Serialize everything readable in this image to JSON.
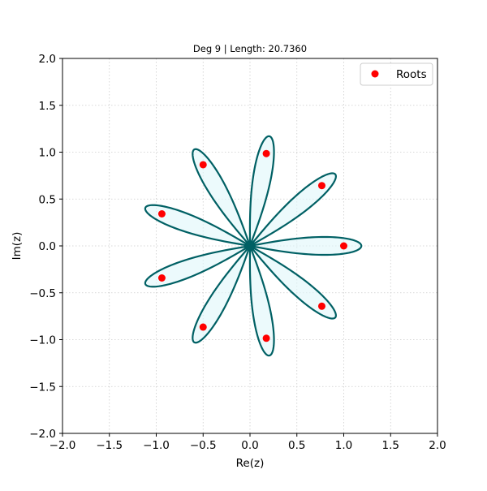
{
  "chart_data": {
    "type": "line",
    "title": "Deg 9 | Length: 20.7360",
    "xlabel": "Re(z)",
    "ylabel": "Im(z)",
    "xlim": [
      -2.0,
      2.0
    ],
    "ylim": [
      -2.0,
      2.0
    ],
    "xticks": [
      "−2.0",
      "−1.5",
      "−1.0",
      "−0.5",
      "0.0",
      "0.5",
      "1.0",
      "1.5",
      "2.0"
    ],
    "yticks": [
      "−2.0",
      "−1.5",
      "−1.0",
      "−0.5",
      "0.0",
      "0.5",
      "1.0",
      "1.5",
      "2.0"
    ],
    "grid": true,
    "legend": {
      "position": "top-right",
      "entries": [
        "Roots"
      ]
    },
    "curve": {
      "shape": "lemniscate-petals",
      "degree": 9,
      "petal_count": 9,
      "petal_tip_radius": 1.1,
      "petal_angles_deg": [
        0,
        40,
        80,
        120,
        160,
        200,
        240,
        280,
        320
      ],
      "stroke_color": "#006064",
      "fill_color": "#e0f7fa"
    },
    "series": [
      {
        "name": "Roots",
        "color": "#ff0000",
        "points": [
          {
            "x": 1.0,
            "y": 0.0
          },
          {
            "x": 0.766,
            "y": 0.643
          },
          {
            "x": 0.174,
            "y": 0.985
          },
          {
            "x": -0.5,
            "y": 0.866
          },
          {
            "x": -0.94,
            "y": 0.342
          },
          {
            "x": -0.94,
            "y": -0.342
          },
          {
            "x": -0.5,
            "y": -0.866
          },
          {
            "x": 0.174,
            "y": -0.985
          },
          {
            "x": 0.766,
            "y": -0.643
          }
        ]
      }
    ]
  }
}
